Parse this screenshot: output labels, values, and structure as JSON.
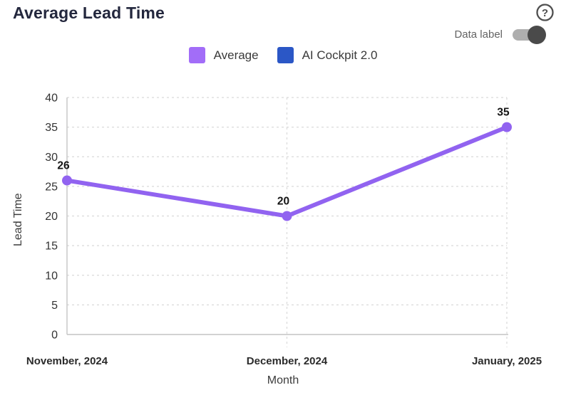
{
  "page": {
    "title": "Average Lead Time"
  },
  "controls": {
    "help_icon": "question-mark",
    "data_label": "Data label",
    "data_label_on": true,
    "toggle_track_color": "#aeaeae",
    "toggle_knob_color": "#4a4a4a"
  },
  "legend": {
    "position": "top",
    "items": [
      {
        "label": "Average",
        "color": "#a26df8"
      },
      {
        "label": "AI Cockpit 2.0",
        "color": "#2b57c6"
      }
    ]
  },
  "chart_data": {
    "type": "line",
    "title": "Average Lead Time",
    "x": [
      "November, 2024",
      "December, 2024",
      "January, 2025"
    ],
    "series": [
      {
        "name": "Average",
        "color": "#9163f0",
        "values": [
          26,
          20,
          35
        ]
      }
    ],
    "data_labels": [
      "26",
      "20",
      "35"
    ],
    "data_labels_shown": true,
    "xlabel": "Month",
    "ylabel": "Lead Time",
    "ylim": [
      0,
      40
    ],
    "yticks": [
      0,
      5,
      10,
      15,
      20,
      25,
      30,
      35,
      40
    ],
    "grid": true,
    "grid_style": "dashed",
    "grid_color": "#d9d9d9",
    "axis_color": "#c4c4c4",
    "tick_label_color": "#333333",
    "category_label_color": "#2b2b2b",
    "data_label_color": "#161616",
    "marker_radius": 7,
    "line_width": 6
  }
}
